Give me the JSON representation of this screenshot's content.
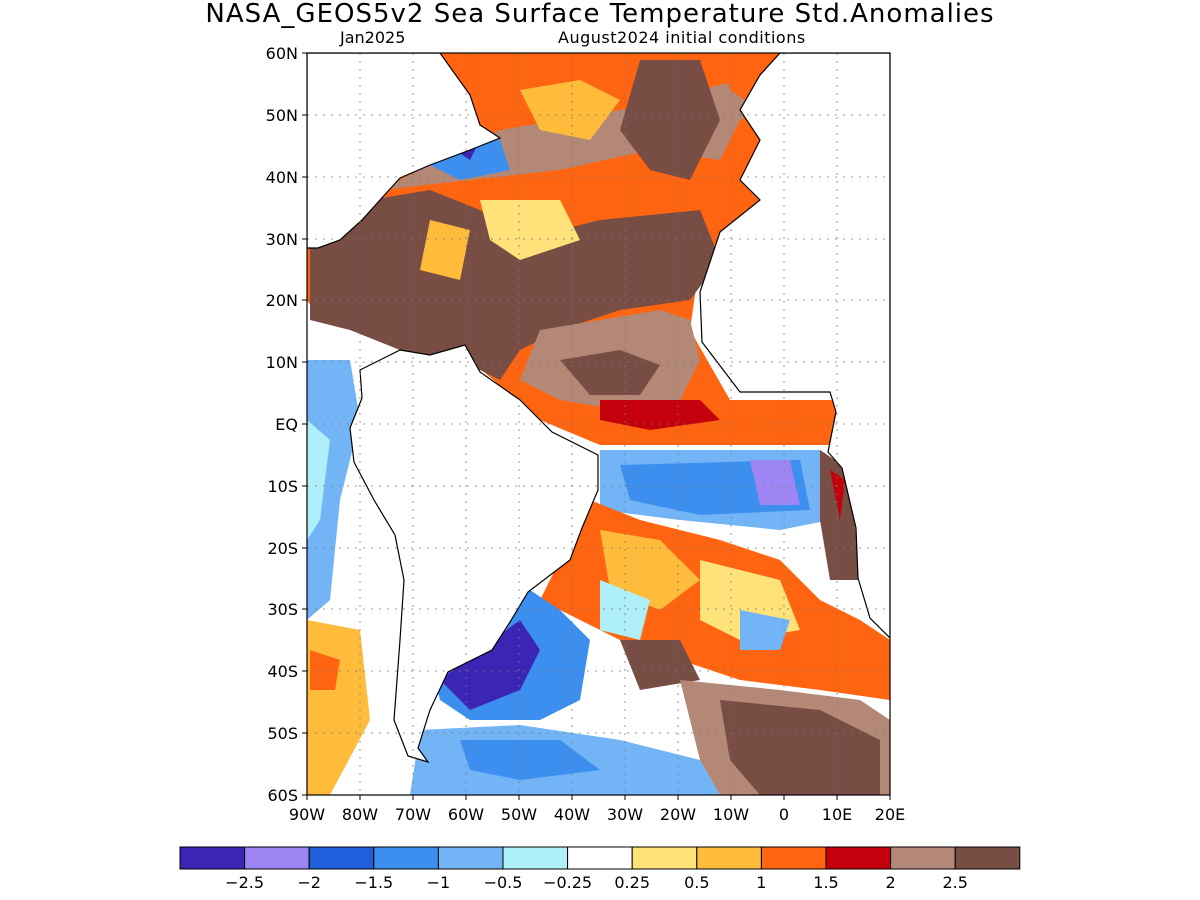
{
  "title": "NASA_GEOS5v2 Sea Surface Temperature Std.Anomalies",
  "subtitle_left": "Jan2025",
  "subtitle_right": "August2024 initial conditions",
  "y_ticks": [
    "60N",
    "50N",
    "40N",
    "30N",
    "20N",
    "10N",
    "EQ",
    "10S",
    "20S",
    "30S",
    "40S",
    "50S",
    "60S"
  ],
  "x_ticks": [
    "90W",
    "80W",
    "70W",
    "60W",
    "50W",
    "40W",
    "30W",
    "20W",
    "10W",
    "0",
    "10E",
    "20E"
  ],
  "colorbar": {
    "colors": [
      "#3b25b5",
      "#9d85f3",
      "#1e5fdc",
      "#3c8fef",
      "#72b4f5",
      "#aeeff8",
      "#ffffff",
      "#ffe27a",
      "#ffbb3a",
      "#ff6410",
      "#c4000c",
      "#b48876",
      "#784d43"
    ],
    "labels": [
      "−2.5",
      "−2",
      "−1.5",
      "−1",
      "−0.5",
      "−0.25",
      "0.25",
      "0.5",
      "1",
      "1.5",
      "2",
      "2.5"
    ]
  }
}
